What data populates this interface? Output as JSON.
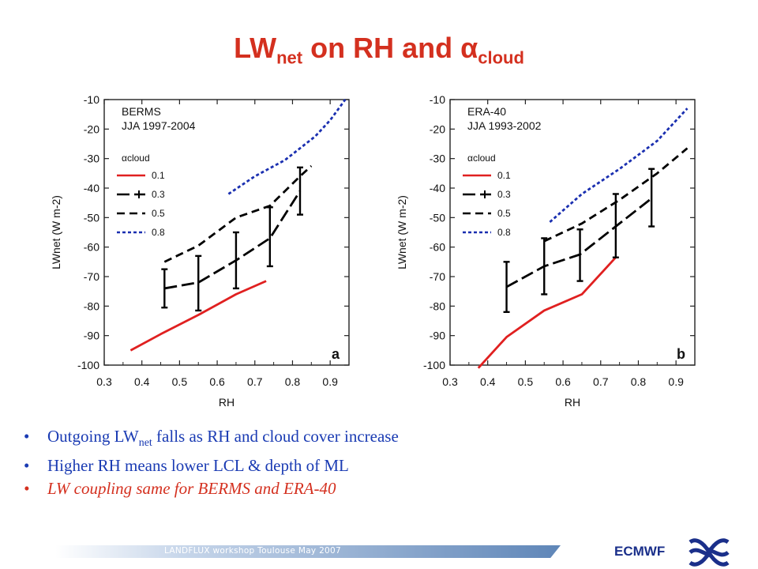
{
  "slide": {
    "title_main": "LW",
    "title_sub1": "net",
    "title_mid": " on RH and α",
    "title_sub2": "cloud",
    "bullets": [
      {
        "pre": "Outgoing LW",
        "sub": "net",
        "post": " falls as RH and cloud cover increase"
      },
      {
        "text": "Higher RH means lower LCL & depth of ML"
      },
      {
        "text": "LW coupling same for BERMS and ERA-40"
      }
    ],
    "footer": "LANDFLUX workshop Toulouse May 2007",
    "org": "ECMWF",
    "colors": {
      "title": "#d4301f",
      "bullet_blue": "#1a3bb3",
      "bullet_red": "#d4301f",
      "org": "#1a2f8a"
    }
  },
  "chart_data": [
    {
      "type": "line",
      "panel_label": "a",
      "dataset": "BERMS",
      "period": "JJA 1997-2004",
      "xlabel": "RH",
      "ylabel": "LWnet (W m-2)",
      "legend_title": "αcloud",
      "xlim": [
        0.3,
        0.95
      ],
      "ylim": [
        -100,
        -10
      ],
      "xticks": [
        "0.3",
        "0.4",
        "0.5",
        "0.6",
        "0.7",
        "0.8",
        "0.9"
      ],
      "yticks": [
        "-10",
        "-20",
        "-30",
        "-40",
        "-50",
        "-60",
        "-70",
        "-80",
        "-90",
        "-100"
      ],
      "series": [
        {
          "name": "0.1",
          "color": "#e02020",
          "dash": "solid",
          "x": [
            0.37,
            0.45,
            0.55,
            0.65,
            0.73
          ],
          "y": [
            -95,
            -89.5,
            -83,
            -76,
            -71.5
          ]
        },
        {
          "name": "0.3",
          "color": "#000000",
          "dash": "longdash",
          "errorbars": true,
          "x": [
            0.46,
            0.55,
            0.65,
            0.74,
            0.82
          ],
          "y": [
            -74,
            -72,
            -64.5,
            -57,
            -41
          ],
          "err_low": [
            -80.5,
            -81.5,
            -74,
            -66.5,
            -49
          ],
          "err_high": [
            -67.5,
            -63,
            -55,
            -46.5,
            -33
          ]
        },
        {
          "name": "0.5",
          "color": "#000000",
          "dash": "dash",
          "x": [
            0.46,
            0.55,
            0.65,
            0.74,
            0.82,
            0.85
          ],
          "y": [
            -65,
            -59.5,
            -50,
            -46,
            -36,
            -32.5
          ]
        },
        {
          "name": "0.8",
          "color": "#1a2fb0",
          "dash": "dot",
          "x": [
            0.63,
            0.7,
            0.78,
            0.86,
            0.9,
            0.94
          ],
          "y": [
            -42,
            -36,
            -30.5,
            -22.5,
            -17,
            -10
          ]
        }
      ]
    },
    {
      "type": "line",
      "panel_label": "b",
      "dataset": "ERA-40",
      "period": "JJA 1993-2002",
      "xlabel": "RH",
      "ylabel": "LWnet (W m-2)",
      "legend_title": "αcloud",
      "xlim": [
        0.3,
        0.95
      ],
      "ylim": [
        -100,
        -10
      ],
      "xticks": [
        "0.3",
        "0.4",
        "0.5",
        "0.6",
        "0.7",
        "0.8",
        "0.9"
      ],
      "yticks": [
        "-10",
        "-20",
        "-30",
        "-40",
        "-50",
        "-60",
        "-70",
        "-80",
        "-90",
        "-100"
      ],
      "series": [
        {
          "name": "0.1",
          "color": "#e02020",
          "dash": "solid",
          "x": [
            0.375,
            0.45,
            0.55,
            0.65,
            0.74
          ],
          "y": [
            -101,
            -90.5,
            -81.5,
            -76,
            -63.5
          ]
        },
        {
          "name": "0.3",
          "color": "#000000",
          "dash": "longdash",
          "errorbars": true,
          "x": [
            0.45,
            0.55,
            0.645,
            0.74,
            0.835
          ],
          "y": [
            -73.5,
            -66.5,
            -62.5,
            -53,
            -43.5
          ],
          "err_low": [
            -82,
            -76,
            -71.5,
            -63.5,
            -53
          ],
          "err_high": [
            -65,
            -57,
            -54,
            -42,
            -33.5
          ]
        },
        {
          "name": "0.5",
          "color": "#000000",
          "dash": "dash",
          "x": [
            0.55,
            0.65,
            0.75,
            0.85,
            0.93
          ],
          "y": [
            -58,
            -52,
            -44,
            -35,
            -26.5
          ]
        },
        {
          "name": "0.8",
          "color": "#1a2fb0",
          "dash": "dot",
          "x": [
            0.565,
            0.65,
            0.75,
            0.85,
            0.93
          ],
          "y": [
            -51.5,
            -42,
            -33.5,
            -24,
            -13
          ]
        }
      ]
    }
  ]
}
